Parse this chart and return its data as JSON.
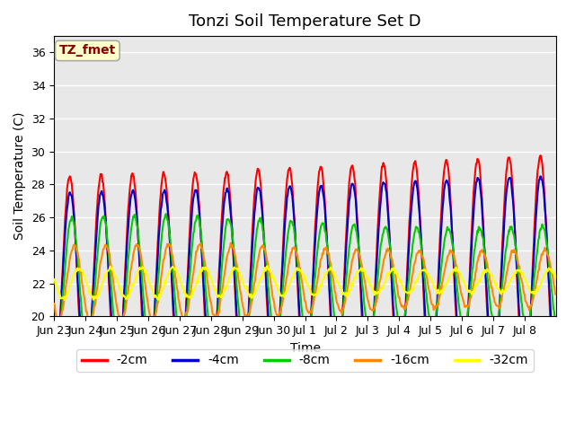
{
  "title": "Tonzi Soil Temperature Set D",
  "xlabel": "Time",
  "ylabel": "Soil Temperature (C)",
  "ylim": [
    20,
    37
  ],
  "yticks": [
    20,
    22,
    24,
    26,
    28,
    30,
    32,
    34,
    36
  ],
  "annotation_text": "TZ_fmet",
  "annotation_color": "#8B0000",
  "annotation_bg": "#FFFFCC",
  "annotation_border": "#AAAAAA",
  "legend_entries": [
    "-2cm",
    "-4cm",
    "-8cm",
    "-16cm",
    "-32cm"
  ],
  "line_colors": [
    "#FF0000",
    "#0000CC",
    "#00CC00",
    "#FF8800",
    "#FFFF00"
  ],
  "line_widths": [
    1.5,
    1.5,
    1.5,
    1.5,
    1.5
  ],
  "bg_color": "#E8E8E8",
  "n_days": 16,
  "samples_per_day": 48,
  "base_temp": 22.0,
  "amplitudes": [
    6.5,
    5.5,
    3.5,
    2.0,
    0.8
  ],
  "phase_lags": [
    0.0,
    0.3,
    1.5,
    3.5,
    7.0
  ],
  "xtick_labels": [
    "Jun 23",
    "Jun 24",
    "Jun 25",
    "Jun 26",
    "Jun 27",
    "Jun 28",
    "Jun 29",
    "Jun 30",
    "Jul 1",
    "Jul 2",
    "Jul 3",
    "Jul 4",
    "Jul 5",
    "Jul 6",
    "Jul 7",
    "Jul 8"
  ],
  "title_fontsize": 13,
  "axis_label_fontsize": 10,
  "tick_fontsize": 9
}
